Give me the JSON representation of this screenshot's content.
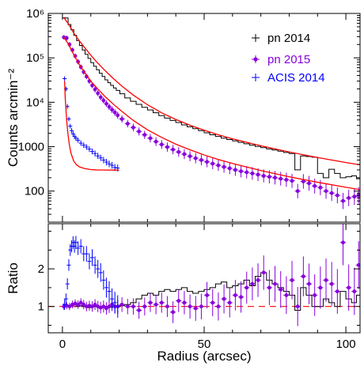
{
  "chart_data": [
    {
      "type": "line",
      "panel": "top",
      "xlabel": "",
      "ylabel": "Counts arcmin⁻²",
      "xlim": [
        -5,
        105
      ],
      "ylim": [
        20,
        1000000
      ],
      "yscale": "log",
      "x_ticks": [
        0,
        50,
        100
      ],
      "y_ticks": [
        {
          "value": 100,
          "label": "100"
        },
        {
          "value": 1000,
          "label": "1000"
        },
        {
          "value": 10000,
          "label": "10⁴"
        },
        {
          "value": 100000,
          "label": "10⁵"
        },
        {
          "value": 1000000,
          "label": "10⁶"
        }
      ],
      "grid": false,
      "legend_position": "top-right",
      "legend": [
        "pn 2014",
        "pn 2015",
        "ACIS 2014"
      ],
      "series": [
        {
          "name": "pn 2014",
          "color": "#000000",
          "style": "step",
          "x": [
            0.5,
            1.5,
            2.5,
            3.5,
            4.5,
            5.5,
            6.5,
            7.5,
            8.5,
            9.5,
            10.5,
            11.5,
            12.5,
            13.5,
            14.5,
            15.5,
            16.5,
            17.5,
            18.5,
            19.5,
            21,
            23,
            25,
            27,
            29,
            31,
            33,
            35,
            37,
            39,
            41,
            43,
            45,
            47,
            49,
            51,
            53,
            55,
            57,
            59,
            61,
            63,
            65,
            67,
            69,
            71,
            73,
            75,
            77,
            79,
            81,
            83,
            85,
            87,
            89,
            91,
            93,
            95,
            97,
            99,
            101,
            103,
            104.5
          ],
          "values": [
            800000,
            790000,
            560000,
            430000,
            320000,
            245000,
            190000,
            150000,
            120000,
            97000,
            78000,
            65000,
            54000,
            45000,
            38000,
            32000,
            27500,
            24000,
            21000,
            18500,
            15500,
            12500,
            10500,
            9000,
            7700,
            6700,
            5800,
            5000,
            4400,
            3900,
            3500,
            3100,
            2800,
            2550,
            2300,
            2050,
            1850,
            1700,
            1560,
            1450,
            1350,
            1250,
            1160,
            1080,
            1010,
            950,
            890,
            840,
            790,
            740,
            700,
            300,
            620,
            600,
            580,
            250,
            200,
            310,
            250,
            200,
            210,
            220,
            190
          ]
        },
        {
          "name": "pn 2015",
          "color": "#8800dd",
          "style": "errorbar",
          "x": [
            0.5,
            1.5,
            2.5,
            3.5,
            4.5,
            5.5,
            6.5,
            7.5,
            8.5,
            9.5,
            10.5,
            11.5,
            12.5,
            13.5,
            14.5,
            15.5,
            16.5,
            17.5,
            18.5,
            19.5,
            21,
            23,
            25,
            27,
            29,
            31,
            33,
            35,
            37,
            39,
            41,
            43,
            45,
            47,
            49,
            51,
            53,
            55,
            57,
            59,
            61,
            63,
            65,
            67,
            69,
            71,
            73,
            75,
            77,
            79,
            81,
            83,
            85,
            87,
            89,
            91,
            93,
            95,
            97,
            99,
            101,
            103,
            104.5
          ],
          "values": [
            290000,
            280000,
            200000,
            150000,
            110000,
            82000,
            62000,
            48000,
            38000,
            30000,
            24000,
            19500,
            16000,
            13000,
            11000,
            9300,
            7900,
            6800,
            5900,
            5100,
            4200,
            3300,
            2700,
            2200,
            1850,
            1550,
            1300,
            1120,
            980,
            860,
            760,
            680,
            610,
            550,
            500,
            455,
            415,
            380,
            350,
            325,
            300,
            280,
            265,
            250,
            235,
            220,
            210,
            200,
            190,
            180,
            170,
            100,
            165,
            150,
            130,
            120,
            100,
            90,
            80,
            60,
            70,
            75,
            80
          ]
        },
        {
          "name": "ACIS 2014",
          "color": "#0000ff",
          "style": "errorbar",
          "x": [
            0.75,
            1.25,
            1.75,
            2.25,
            2.75,
            3.25,
            3.75,
            4.25,
            4.75,
            5.5,
            6.5,
            7.5,
            8.5,
            9.5,
            10.5,
            11.5,
            12.5,
            13.5,
            14.5,
            15.5,
            16.5,
            17.5,
            18.5,
            19.5
          ],
          "values": [
            34000,
            20000,
            8000,
            4200,
            2900,
            2300,
            1950,
            1700,
            1550,
            1400,
            1200,
            1080,
            980,
            880,
            780,
            700,
            620,
            560,
            500,
            450,
            410,
            380,
            340,
            330
          ]
        },
        {
          "name": "",
          "color": "#ff0000",
          "style": "line",
          "x": [
            0.5,
            2,
            4,
            6,
            8,
            10,
            12,
            15,
            18,
            21,
            25,
            30,
            35,
            40,
            45,
            50,
            55,
            60,
            70,
            80,
            90,
            100,
            105
          ],
          "values": [
            800000,
            600000,
            360000,
            240000,
            165000,
            115000,
            82000,
            52000,
            34000,
            23000,
            14500,
            8800,
            5800,
            4100,
            3050,
            2350,
            1850,
            1500,
            1050,
            760,
            570,
            440,
            390
          ]
        },
        {
          "name": "",
          "color": "#ff0000",
          "style": "line",
          "x": [
            0.5,
            2,
            4,
            6,
            8,
            10,
            12,
            15,
            18,
            21,
            25,
            30,
            35,
            40,
            45,
            50,
            55,
            60,
            70,
            80,
            90,
            100,
            105
          ],
          "values": [
            290000,
            210000,
            118000,
            70000,
            45000,
            30000,
            21500,
            13500,
            9000,
            6200,
            3900,
            2400,
            1620,
            1140,
            850,
            650,
            515,
            420,
            290,
            210,
            158,
            122,
            108
          ]
        },
        {
          "name": "",
          "color": "#ff0000",
          "style": "line",
          "x": [
            0.75,
            1,
            1.5,
            2,
            2.5,
            3,
            4,
            5,
            6,
            8,
            10,
            12,
            15,
            18,
            20
          ],
          "values": [
            30000,
            12000,
            3800,
            1800,
            1050,
            720,
            470,
            390,
            350,
            320,
            305,
            300,
            298,
            297,
            296
          ]
        }
      ]
    },
    {
      "type": "line",
      "panel": "bottom",
      "xlabel": "Radius (arcsec)",
      "ylabel": "Ratio",
      "xlim": [
        -5,
        105
      ],
      "ylim": [
        0.3,
        3.2
      ],
      "yscale": "linear",
      "x_ticks": [
        0,
        50,
        100
      ],
      "y_ticks": [
        1,
        2
      ],
      "grid": false,
      "reference_line": {
        "y": 1,
        "color": "#ff0000",
        "style": "dashed"
      },
      "series": [
        {
          "name": "pn 2014",
          "color": "#000000",
          "style": "step",
          "x": [
            0.5,
            1.5,
            2.5,
            3.5,
            4.5,
            5.5,
            6.5,
            7.5,
            8.5,
            9.5,
            10.5,
            11.5,
            12.5,
            13.5,
            14.5,
            15.5,
            16.5,
            17.5,
            18.5,
            19.5,
            21,
            23,
            25,
            27,
            29,
            31,
            33,
            35,
            37,
            39,
            41,
            43,
            45,
            47,
            49,
            51,
            53,
            55,
            57,
            59,
            61,
            63,
            65,
            67,
            69,
            71,
            73,
            75,
            77,
            79,
            81,
            83,
            85,
            87,
            89,
            91,
            93,
            95,
            97,
            99,
            101,
            103,
            104.5
          ],
          "values": [
            1.0,
            1.0,
            1.02,
            1.03,
            1.05,
            1.0,
            1.02,
            1.0,
            1.0,
            0.97,
            0.98,
            1.0,
            1.0,
            0.95,
            0.97,
            1.0,
            1.0,
            0.98,
            1.0,
            1.0,
            1.02,
            1.05,
            1.1,
            1.2,
            1.3,
            1.35,
            1.3,
            1.4,
            1.45,
            1.4,
            1.45,
            1.5,
            1.4,
            1.35,
            1.4,
            1.45,
            1.5,
            1.6,
            1.65,
            1.5,
            1.55,
            1.6,
            1.7,
            1.55,
            1.8,
            1.9,
            1.7,
            1.6,
            1.5,
            1.4,
            1.3,
            0.9,
            1.5,
            1.3,
            1.0,
            1.0,
            1.2,
            1.1,
            1.0,
            1.4,
            1.2,
            1.1,
            1.3
          ]
        },
        {
          "name": "pn 2015",
          "color": "#8800dd",
          "style": "errorbar",
          "x": [
            0.5,
            1.5,
            2.5,
            3.5,
            4.5,
            5.5,
            6.5,
            7.5,
            8.5,
            9.5,
            10.5,
            11.5,
            12.5,
            13.5,
            14.5,
            15.5,
            16.5,
            17.5,
            18.5,
            19.5,
            21,
            23,
            25,
            27,
            29,
            31,
            33,
            35,
            37,
            39,
            41,
            43,
            45,
            47,
            49,
            51,
            53,
            55,
            57,
            59,
            61,
            63,
            65,
            67,
            69,
            71,
            73,
            75,
            77,
            79,
            81,
            83,
            85,
            87,
            89,
            91,
            93,
            95,
            97,
            99,
            101,
            103,
            104.5
          ],
          "values": [
            1.0,
            1.02,
            1.0,
            1.05,
            1.08,
            1.05,
            1.1,
            1.05,
            1.0,
            1.02,
            1.0,
            1.05,
            1.0,
            0.97,
            1.0,
            0.95,
            1.0,
            1.05,
            1.0,
            1.0,
            1.05,
            1.0,
            1.0,
            0.9,
            1.0,
            1.1,
            1.05,
            1.1,
            1.0,
            0.85,
            1.15,
            1.1,
            1.0,
            0.95,
            1.0,
            1.3,
            1.1,
            1.0,
            1.2,
            1.1,
            1.3,
            1.25,
            1.5,
            1.6,
            1.7,
            1.9,
            1.5,
            1.6,
            1.45,
            1.3,
            1.7,
            1.0,
            1.8,
            1.6,
            1.3,
            1.5,
            1.7,
            1.6,
            1.4,
            2.7,
            1.5,
            1.4,
            2.1
          ]
        },
        {
          "name": "ACIS 2014",
          "color": "#0000ff",
          "style": "errorbar",
          "x": [
            0.75,
            1.25,
            1.75,
            2.25,
            2.75,
            3.25,
            3.75,
            4.25,
            4.75,
            5.5,
            6.5,
            7.5,
            8.5,
            9.5,
            10.5,
            11.5,
            12.5,
            13.5,
            14.5,
            15.5,
            16.5,
            17.5,
            18.5,
            19.5
          ],
          "values": [
            1.05,
            1.2,
            1.6,
            2.1,
            2.5,
            2.6,
            2.7,
            2.6,
            2.7,
            2.55,
            2.6,
            2.4,
            2.4,
            2.2,
            2.3,
            2.1,
            2.0,
            1.9,
            1.7,
            1.5,
            1.4,
            1.2,
            1.1,
            1.0
          ]
        }
      ]
    }
  ]
}
